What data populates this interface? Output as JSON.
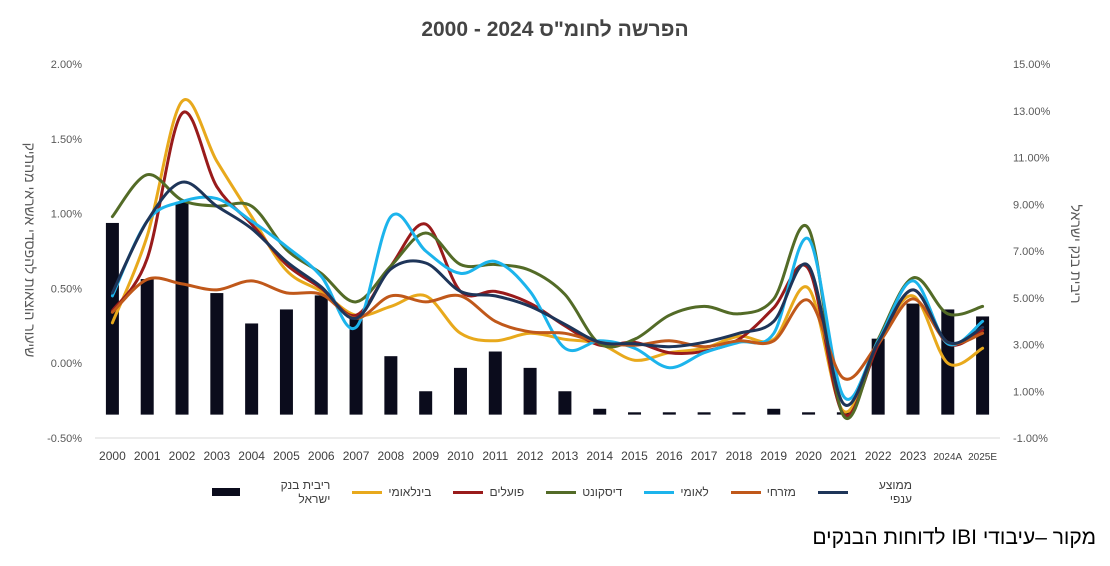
{
  "title": "הפרשה לחומ\"ס 2024 - 2000",
  "source_note": "מקור –עיבודי IBI לדוחות הבנקים",
  "chart_data": {
    "type": "bar+line",
    "categories": [
      "2000",
      "2001",
      "2002",
      "2003",
      "2004",
      "2005",
      "2006",
      "2007",
      "2008",
      "2009",
      "2010",
      "2011",
      "2012",
      "2013",
      "2014",
      "2015",
      "2016",
      "2017",
      "2018",
      "2019",
      "2020",
      "2021",
      "2022",
      "2023",
      "2024A",
      "2025E"
    ],
    "left_axis": {
      "label": "שיעור הוצאות להפסדי אשראי מהתיק",
      "range": [
        -0.5,
        2.0
      ],
      "ticks": [
        "-0.50%",
        "0.00%",
        "0.50%",
        "1.00%",
        "1.50%",
        "2.00%"
      ],
      "tick_values": [
        -0.5,
        0.0,
        0.5,
        1.0,
        1.5,
        2.0
      ]
    },
    "right_axis": {
      "label": "ריבית בנק ישראל",
      "range": [
        -1.0,
        15.0
      ],
      "ticks": [
        "-1.00%",
        "1.00%",
        "3.00%",
        "5.00%",
        "7.00%",
        "9.00%",
        "11.00%",
        "13.00%",
        "15.00%"
      ],
      "tick_values": [
        -1,
        1,
        3,
        5,
        7,
        9,
        11,
        13,
        15
      ]
    },
    "bars": {
      "name": "ריבית בנק ישראל",
      "axis": "right",
      "color": "#0b0c1c",
      "baseline": 0,
      "values": [
        8.2,
        5.8,
        9.1,
        5.2,
        3.9,
        4.5,
        5.1,
        4.1,
        2.5,
        1.0,
        2.0,
        2.7,
        2.0,
        1.0,
        0.25,
        0.1,
        0.1,
        0.1,
        0.1,
        0.25,
        0.1,
        0.1,
        3.25,
        4.75,
        4.5,
        4.2
      ]
    },
    "series": [
      {
        "name": "בינלאומי",
        "axis": "left",
        "color": "#e8a91c",
        "values": [
          0.27,
          0.85,
          1.75,
          1.35,
          0.98,
          0.62,
          0.48,
          0.32,
          0.38,
          0.45,
          0.2,
          0.15,
          0.2,
          0.16,
          0.13,
          0.02,
          0.07,
          0.1,
          0.18,
          0.16,
          0.5,
          -0.32,
          0.13,
          0.45,
          0.0,
          0.1
        ]
      },
      {
        "name": "פועלים",
        "axis": "left",
        "color": "#991b1b",
        "values": [
          0.35,
          0.7,
          1.67,
          1.18,
          0.93,
          0.66,
          0.5,
          0.32,
          0.65,
          0.93,
          0.48,
          0.48,
          0.4,
          0.25,
          0.12,
          0.14,
          0.07,
          0.08,
          0.16,
          0.37,
          0.63,
          -0.34,
          0.12,
          0.49,
          0.13,
          0.22
        ]
      },
      {
        "name": "דיסקונט",
        "axis": "left",
        "color": "#536b27",
        "values": [
          0.98,
          1.26,
          1.09,
          1.05,
          1.05,
          0.76,
          0.6,
          0.41,
          0.65,
          0.87,
          0.66,
          0.66,
          0.62,
          0.46,
          0.13,
          0.16,
          0.32,
          0.38,
          0.33,
          0.43,
          0.9,
          -0.35,
          0.16,
          0.57,
          0.33,
          0.38
        ]
      },
      {
        "name": "לאומי",
        "axis": "left",
        "color": "#1cb4ec",
        "values": [
          0.45,
          0.95,
          1.08,
          1.1,
          0.95,
          0.78,
          0.58,
          0.24,
          0.98,
          0.75,
          0.6,
          0.68,
          0.48,
          0.1,
          0.15,
          0.1,
          -0.03,
          0.07,
          0.14,
          0.2,
          0.83,
          -0.22,
          0.15,
          0.55,
          0.13,
          0.28
        ]
      },
      {
        "name": "מזרחי",
        "axis": "left",
        "color": "#c0581a",
        "values": [
          0.34,
          0.56,
          0.53,
          0.49,
          0.55,
          0.47,
          0.46,
          0.3,
          0.45,
          0.41,
          0.45,
          0.28,
          0.21,
          0.2,
          0.14,
          0.12,
          0.15,
          0.11,
          0.15,
          0.15,
          0.42,
          -0.1,
          0.13,
          0.43,
          0.14,
          0.2
        ]
      },
      {
        "name": "ממוצע ענפי",
        "axis": "left",
        "color": "#1e3559",
        "values": [
          0.47,
          0.95,
          1.21,
          1.05,
          0.9,
          0.68,
          0.51,
          0.3,
          0.63,
          0.67,
          0.48,
          0.45,
          0.38,
          0.26,
          0.14,
          0.13,
          0.11,
          0.14,
          0.2,
          0.28,
          0.65,
          -0.27,
          0.14,
          0.49,
          0.14,
          0.24
        ]
      }
    ],
    "legend": {
      "position": "bottom",
      "entries": [
        "ריבית בנק ישראל",
        "בינלאומי",
        "פועלים",
        "דיסקונט",
        "לאומי",
        "מזרחי",
        "ממוצע ענפי"
      ]
    },
    "grid": false
  }
}
